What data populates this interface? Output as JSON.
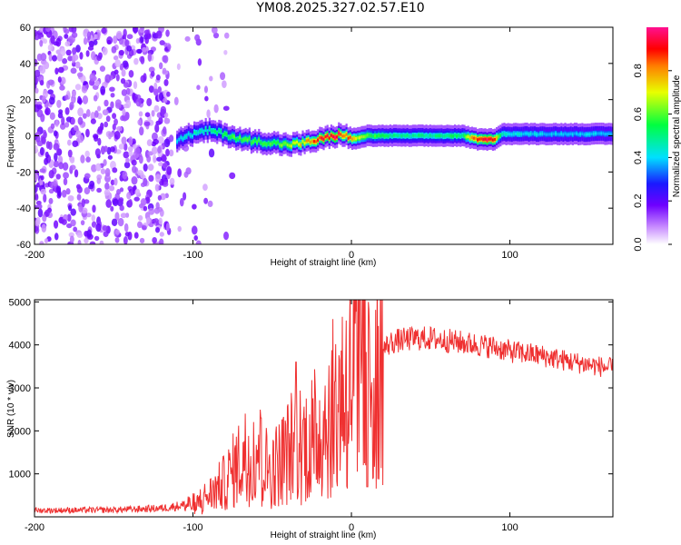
{
  "title": "YM08.2025.327.02.57.E10",
  "chart_data": [
    {
      "type": "heatmap",
      "xlabel": "Height of straight line (km)",
      "ylabel": "Frequency (Hz)",
      "xlim": [
        -200,
        165
      ],
      "ylim": [
        -60,
        60
      ],
      "xticks": [
        -200,
        -100,
        0,
        100
      ],
      "xtick_labels": [
        "-200",
        "-100",
        "0",
        "100"
      ],
      "yticks": [
        -60,
        -40,
        -20,
        0,
        20,
        40,
        60
      ],
      "ytick_labels": [
        "-60",
        "-40",
        "-20",
        "0",
        "20",
        "40",
        "60"
      ],
      "colorbar": {
        "label": "Normalized spectral amplitude",
        "range": [
          0,
          1
        ],
        "ticks": [
          0.0,
          0.2,
          0.4,
          0.6,
          0.8
        ],
        "tick_labels": [
          "0.0",
          "0.2",
          "0.4",
          "0.6",
          "0.8"
        ]
      },
      "noise_region_x": [
        -200,
        -100
      ],
      "ridge": {
        "x": [
          -110,
          -100,
          -90,
          -80,
          -70,
          -60,
          -50,
          -40,
          -30,
          -20,
          -10,
          -5,
          0,
          10,
          30,
          50,
          70,
          80,
          90,
          95,
          120,
          165
        ],
        "freq": [
          -2,
          1,
          3,
          1,
          -2,
          -3,
          -4,
          -5,
          -4,
          -2,
          0,
          1,
          -2,
          0,
          0,
          0,
          0,
          -2,
          -2,
          1,
          1,
          1
        ],
        "amplitude": [
          0.4,
          0.45,
          0.5,
          0.55,
          0.6,
          0.6,
          0.6,
          0.65,
          0.75,
          0.9,
          0.95,
          0.9,
          0.8,
          0.6,
          0.5,
          0.5,
          0.55,
          0.95,
          0.95,
          0.45,
          0.4,
          0.4
        ]
      }
    },
    {
      "type": "line",
      "xlabel": "Height of straight line (km)",
      "ylabel": "SNR (10 * v/v)",
      "xlim": [
        -200,
        165
      ],
      "ylim": [
        0,
        5050
      ],
      "xticks": [
        -200,
        -100,
        0,
        100
      ],
      "xtick_labels": [
        "-200",
        "-100",
        "0",
        "100"
      ],
      "yticks": [
        1000,
        2000,
        3000,
        4000,
        5000
      ],
      "ytick_labels": [
        "1000",
        "2000",
        "3000",
        "4000",
        "5000"
      ],
      "color": "#ef3030",
      "series": [
        {
          "name": "SNR",
          "x": [
            -200,
            -150,
            -120,
            -100,
            -90,
            -80,
            -70,
            -60,
            -55,
            -50,
            -40,
            -35,
            -30,
            -20,
            -15,
            -10,
            -5,
            0,
            5,
            8,
            10,
            12,
            15,
            20,
            25,
            30,
            40,
            50,
            60,
            70,
            80,
            90,
            100,
            120,
            140,
            165
          ],
          "y": [
            150,
            160,
            200,
            300,
            500,
            800,
            1300,
            1700,
            1200,
            1100,
            1500,
            1800,
            1700,
            2000,
            2300,
            2600,
            3000,
            3200,
            3400,
            3500,
            3300,
            3400,
            3600,
            3900,
            4050,
            4100,
            4150,
            4150,
            4100,
            4050,
            4000,
            3950,
            3850,
            3750,
            3600,
            3450
          ],
          "spikes": [
            {
              "x": -35,
              "y": 3600
            },
            {
              "x": -57,
              "y": 2300
            },
            {
              "x": 7,
              "y": 5100
            },
            {
              "x": 10,
              "y": 700
            }
          ]
        }
      ]
    }
  ]
}
